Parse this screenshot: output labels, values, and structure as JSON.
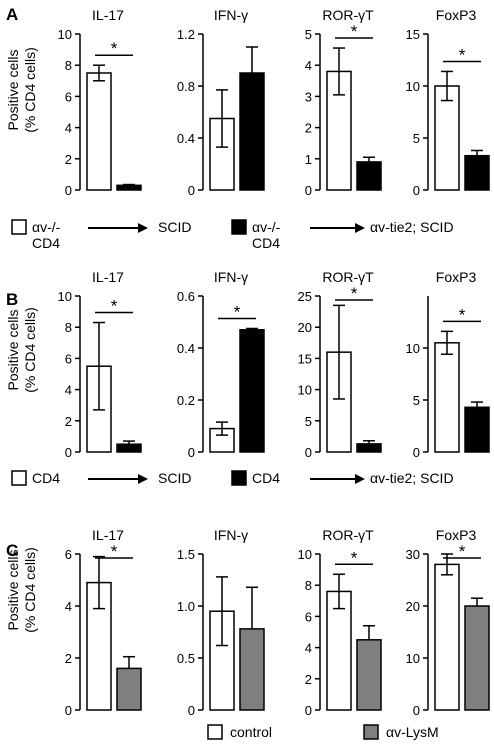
{
  "panels": [
    {
      "label": "A",
      "ylabel_lines": [
        "Positive cells",
        "(% CD4 cells)"
      ],
      "legend": {
        "items": [
          {
            "fill": "white",
            "texts": [
              "αv-/-",
              "CD4"
            ],
            "target": "SCID"
          },
          {
            "fill": "black",
            "texts": [
              "αv-/-",
              "CD4"
            ],
            "target": "αv-tie2; SCID"
          }
        ]
      }
    },
    {
      "label": "B",
      "ylabel_lines": [
        "Positive cells",
        "(% CD4 cells)"
      ],
      "legend": {
        "items": [
          {
            "fill": "white",
            "texts": [
              "CD4"
            ],
            "target": "SCID"
          },
          {
            "fill": "black",
            "texts": [
              "CD4"
            ],
            "target": "αv-tie2; SCID"
          }
        ]
      }
    },
    {
      "label": "C",
      "ylabel_lines": [
        "Positive cells",
        "(% CD4 cells)"
      ],
      "legend": {
        "items": [
          {
            "fill": "white",
            "texts": [
              "control"
            ],
            "target": ""
          },
          {
            "fill": "gray",
            "texts": [
              "αv-LysM"
            ],
            "target": ""
          }
        ]
      }
    }
  ],
  "colors": {
    "white": "#ffffff",
    "black": "#000000",
    "gray": "#7f7f7f",
    "axis": "#000000"
  },
  "chart_data": [
    {
      "panel": "A",
      "type": "bar",
      "title": "IL-17",
      "ylim": [
        0,
        10
      ],
      "yticks": [
        "0",
        "2",
        "4",
        "6",
        "8",
        "10"
      ],
      "series": [
        {
          "fill": "white",
          "value": 7.5,
          "error": 0.5
        },
        {
          "fill": "black",
          "value": 0.3,
          "error": 0.05
        }
      ],
      "significance": "*"
    },
    {
      "panel": "A",
      "type": "bar",
      "title": "IFN-γ",
      "ylim": [
        0,
        1.2
      ],
      "yticks": [
        "0",
        "0.4",
        "0.8",
        "1.2"
      ],
      "series": [
        {
          "fill": "white",
          "value": 0.55,
          "error": 0.22
        },
        {
          "fill": "black",
          "value": 0.9,
          "error": 0.2
        }
      ],
      "significance": ""
    },
    {
      "panel": "A",
      "type": "bar",
      "title": "ROR-γT",
      "ylim": [
        0,
        5
      ],
      "yticks": [
        "0",
        "1",
        "2",
        "3",
        "4",
        "5"
      ],
      "series": [
        {
          "fill": "white",
          "value": 3.8,
          "error": 0.75
        },
        {
          "fill": "black",
          "value": 0.9,
          "error": 0.15
        }
      ],
      "significance": "*"
    },
    {
      "panel": "A",
      "type": "bar",
      "title": "FoxP3",
      "ylim": [
        0,
        15
      ],
      "yticks": [
        "0",
        "5",
        "10",
        "15"
      ],
      "series": [
        {
          "fill": "white",
          "value": 10,
          "error": 1.4
        },
        {
          "fill": "black",
          "value": 3.3,
          "error": 0.5
        }
      ],
      "significance": "*"
    },
    {
      "panel": "B",
      "type": "bar",
      "title": "IL-17",
      "ylim": [
        0,
        10
      ],
      "yticks": [
        "0",
        "2",
        "4",
        "6",
        "8",
        "10"
      ],
      "series": [
        {
          "fill": "white",
          "value": 5.5,
          "error": 2.8
        },
        {
          "fill": "black",
          "value": 0.5,
          "error": 0.2
        }
      ],
      "significance": "*"
    },
    {
      "panel": "B",
      "type": "bar",
      "title": "IFN-γ",
      "ylim": [
        0,
        0.6
      ],
      "yticks": [
        "0",
        "0.2",
        "0.4",
        "0.6"
      ],
      "series": [
        {
          "fill": "white",
          "value": 0.09,
          "error": 0.025
        },
        {
          "fill": "black",
          "value": 0.47,
          "error": 0.005
        }
      ],
      "significance": "*"
    },
    {
      "panel": "B",
      "type": "bar",
      "title": "ROR-γT",
      "ylim": [
        0,
        25
      ],
      "yticks": [
        "0",
        "5",
        "10",
        "15",
        "20",
        "25"
      ],
      "series": [
        {
          "fill": "white",
          "value": 16,
          "error": 7.5
        },
        {
          "fill": "black",
          "value": 1.3,
          "error": 0.5
        }
      ],
      "significance": "*"
    },
    {
      "panel": "B",
      "type": "bar",
      "title": "FoxP3",
      "ylim": [
        0,
        15
      ],
      "yticks": [
        "0",
        "5",
        "10"
      ],
      "series": [
        {
          "fill": "white",
          "value": 10.5,
          "error": 1.1
        },
        {
          "fill": "black",
          "value": 4.3,
          "error": 0.5
        }
      ],
      "significance": "*"
    },
    {
      "panel": "C",
      "type": "bar",
      "title": "IL-17",
      "ylim": [
        0,
        6
      ],
      "yticks": [
        "0",
        "2",
        "4",
        "6"
      ],
      "series": [
        {
          "fill": "white",
          "value": 4.9,
          "error": 1.0
        },
        {
          "fill": "gray",
          "value": 1.6,
          "error": 0.45
        }
      ],
      "significance": "*"
    },
    {
      "panel": "C",
      "type": "bar",
      "title": "IFN-γ",
      "ylim": [
        0,
        1.5
      ],
      "yticks": [
        "0",
        "0.5",
        "1.0",
        "1.5"
      ],
      "series": [
        {
          "fill": "white",
          "value": 0.95,
          "error": 0.33
        },
        {
          "fill": "gray",
          "value": 0.78,
          "error": 0.4
        }
      ],
      "significance": ""
    },
    {
      "panel": "C",
      "type": "bar",
      "title": "ROR-γT",
      "ylim": [
        0,
        10
      ],
      "yticks": [
        "0",
        "2",
        "4",
        "6",
        "8",
        "10"
      ],
      "series": [
        {
          "fill": "white",
          "value": 7.6,
          "error": 1.1
        },
        {
          "fill": "gray",
          "value": 4.5,
          "error": 0.9
        }
      ],
      "significance": "*"
    },
    {
      "panel": "C",
      "type": "bar",
      "title": "FoxP3",
      "ylim": [
        0,
        30
      ],
      "yticks": [
        "0",
        "10",
        "20",
        "30"
      ],
      "series": [
        {
          "fill": "white",
          "value": 28,
          "error": 2.0
        },
        {
          "fill": "gray",
          "value": 20,
          "error": 1.5
        }
      ],
      "significance": "*"
    }
  ]
}
